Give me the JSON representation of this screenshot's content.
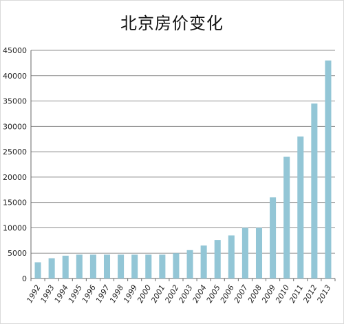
{
  "chart_data": {
    "type": "bar",
    "title": "北京房价变化",
    "xlabel": "",
    "ylabel": "",
    "categories": [
      "1992",
      "1993",
      "1994",
      "1995",
      "1996",
      "1997",
      "1998",
      "1999",
      "2000",
      "2001",
      "2002",
      "2003",
      "2004",
      "2005",
      "2006",
      "2007",
      "2008",
      "2009",
      "2010",
      "2011",
      "2012",
      "2013"
    ],
    "values": [
      3200,
      4000,
      4500,
      4700,
      4700,
      4700,
      4700,
      4700,
      4700,
      4700,
      5000,
      5600,
      6500,
      7600,
      8500,
      10000,
      10000,
      16000,
      24000,
      28000,
      34500,
      43000
    ],
    "ylim": [
      0,
      45000
    ],
    "yticks": [
      0,
      5000,
      10000,
      15000,
      20000,
      25000,
      30000,
      35000,
      40000,
      45000
    ],
    "grid": true,
    "legend": "none",
    "bar_color": "#93c6d6",
    "grid_color": "#8c8c8c"
  }
}
